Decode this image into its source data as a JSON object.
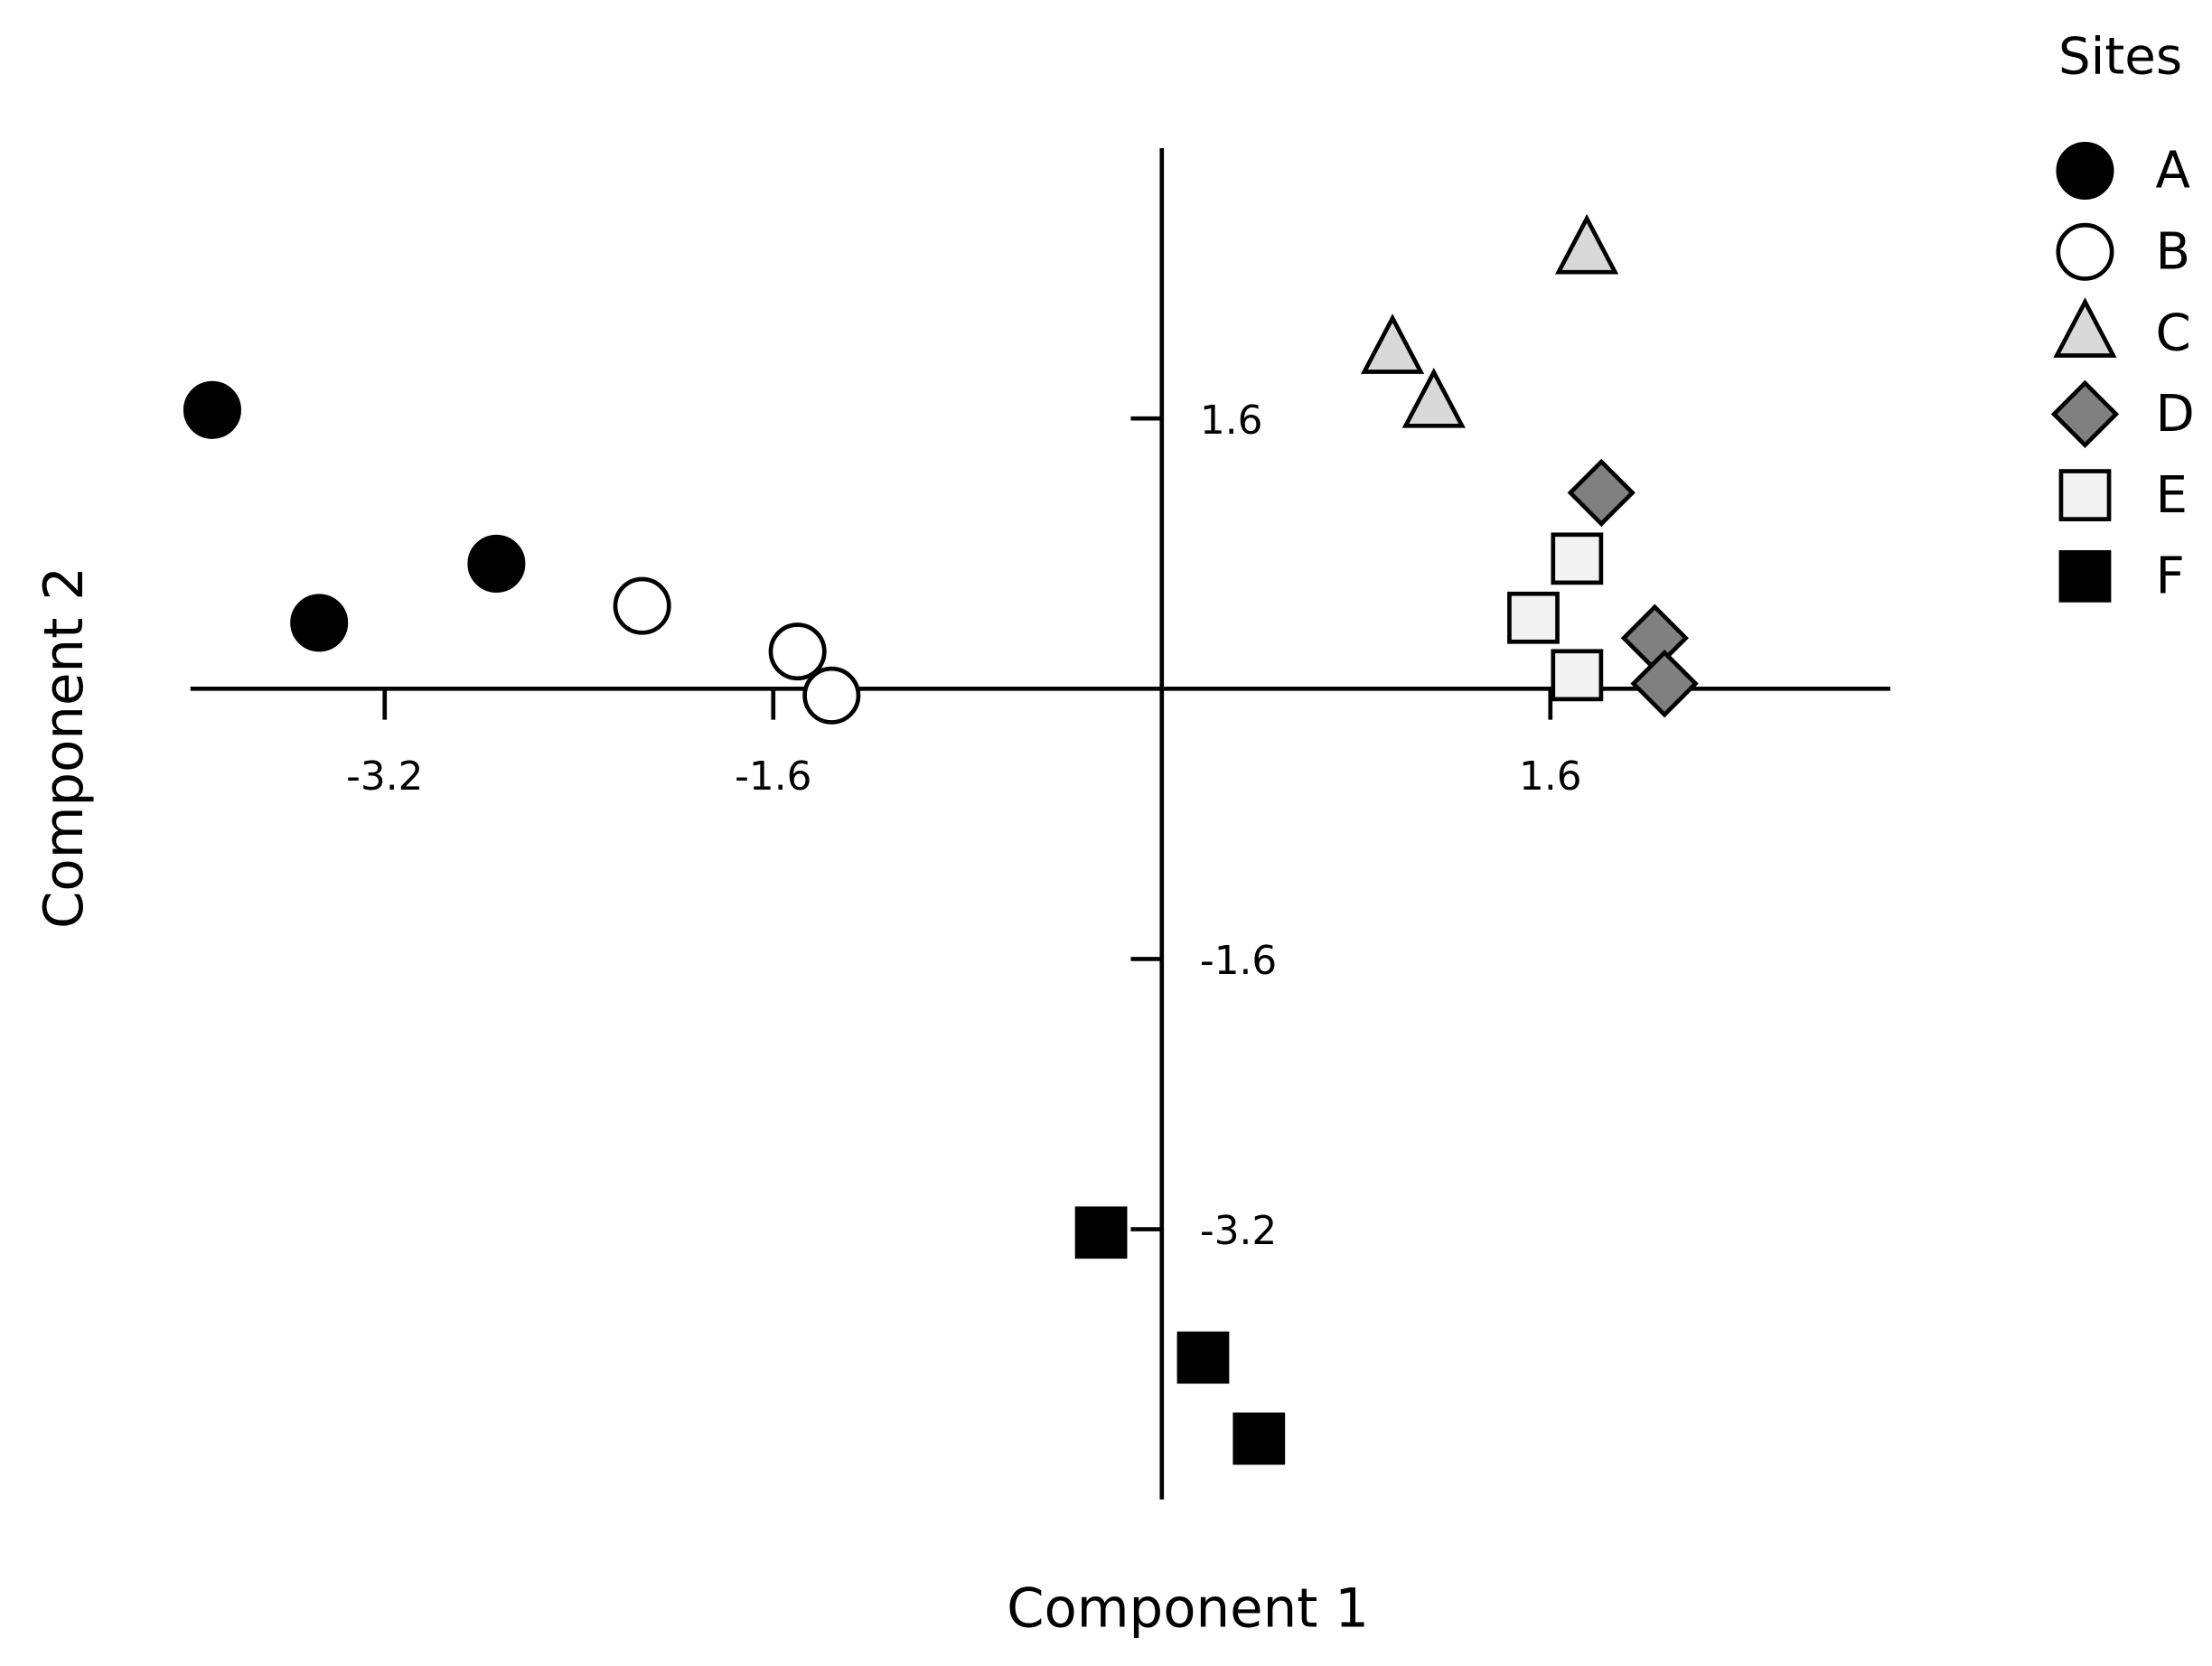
{
  "chart_data": {
    "type": "scatter",
    "x_label": "Component  1",
    "y_label": "Component  2",
    "legend_title": "Sites",
    "legend": "top-right",
    "xlim": [
      -4,
      3
    ],
    "ylim": [
      -4.8,
      3.2
    ],
    "xticks": [
      -3.2,
      -1.6,
      1.6
    ],
    "yticks": [
      1.6,
      -1.6,
      -3.2
    ],
    "series": [
      {
        "name": "A",
        "marker": "circle",
        "color": "#000000",
        "x": [
          -3.91,
          -3.47,
          -2.74
        ],
        "values": [
          1.65,
          0.39,
          0.74
        ]
      },
      {
        "name": "B",
        "marker": "circle",
        "color": "#ffffff",
        "x": [
          -2.14,
          -1.5,
          -1.36
        ],
        "values": [
          0.49,
          0.22,
          -0.04
        ]
      },
      {
        "name": "C",
        "marker": "triangle",
        "color": "#d9d9d9",
        "x": [
          1.75,
          0.95,
          1.12
        ],
        "values": [
          2.6,
          2.01,
          1.69
        ]
      },
      {
        "name": "D",
        "marker": "diamond",
        "color": "#808080",
        "x": [
          1.81,
          2.03,
          2.07
        ],
        "values": [
          1.16,
          0.3,
          0.03
        ]
      },
      {
        "name": "E",
        "marker": "square",
        "color": "#f2f2f2",
        "x": [
          1.71,
          1.53,
          1.71
        ],
        "values": [
          0.77,
          0.42,
          0.08
        ]
      },
      {
        "name": "F",
        "marker": "square",
        "color": "#000000",
        "x": [
          -0.25,
          0.17,
          0.4
        ],
        "values": [
          -3.22,
          -3.96,
          -4.44
        ]
      }
    ]
  }
}
